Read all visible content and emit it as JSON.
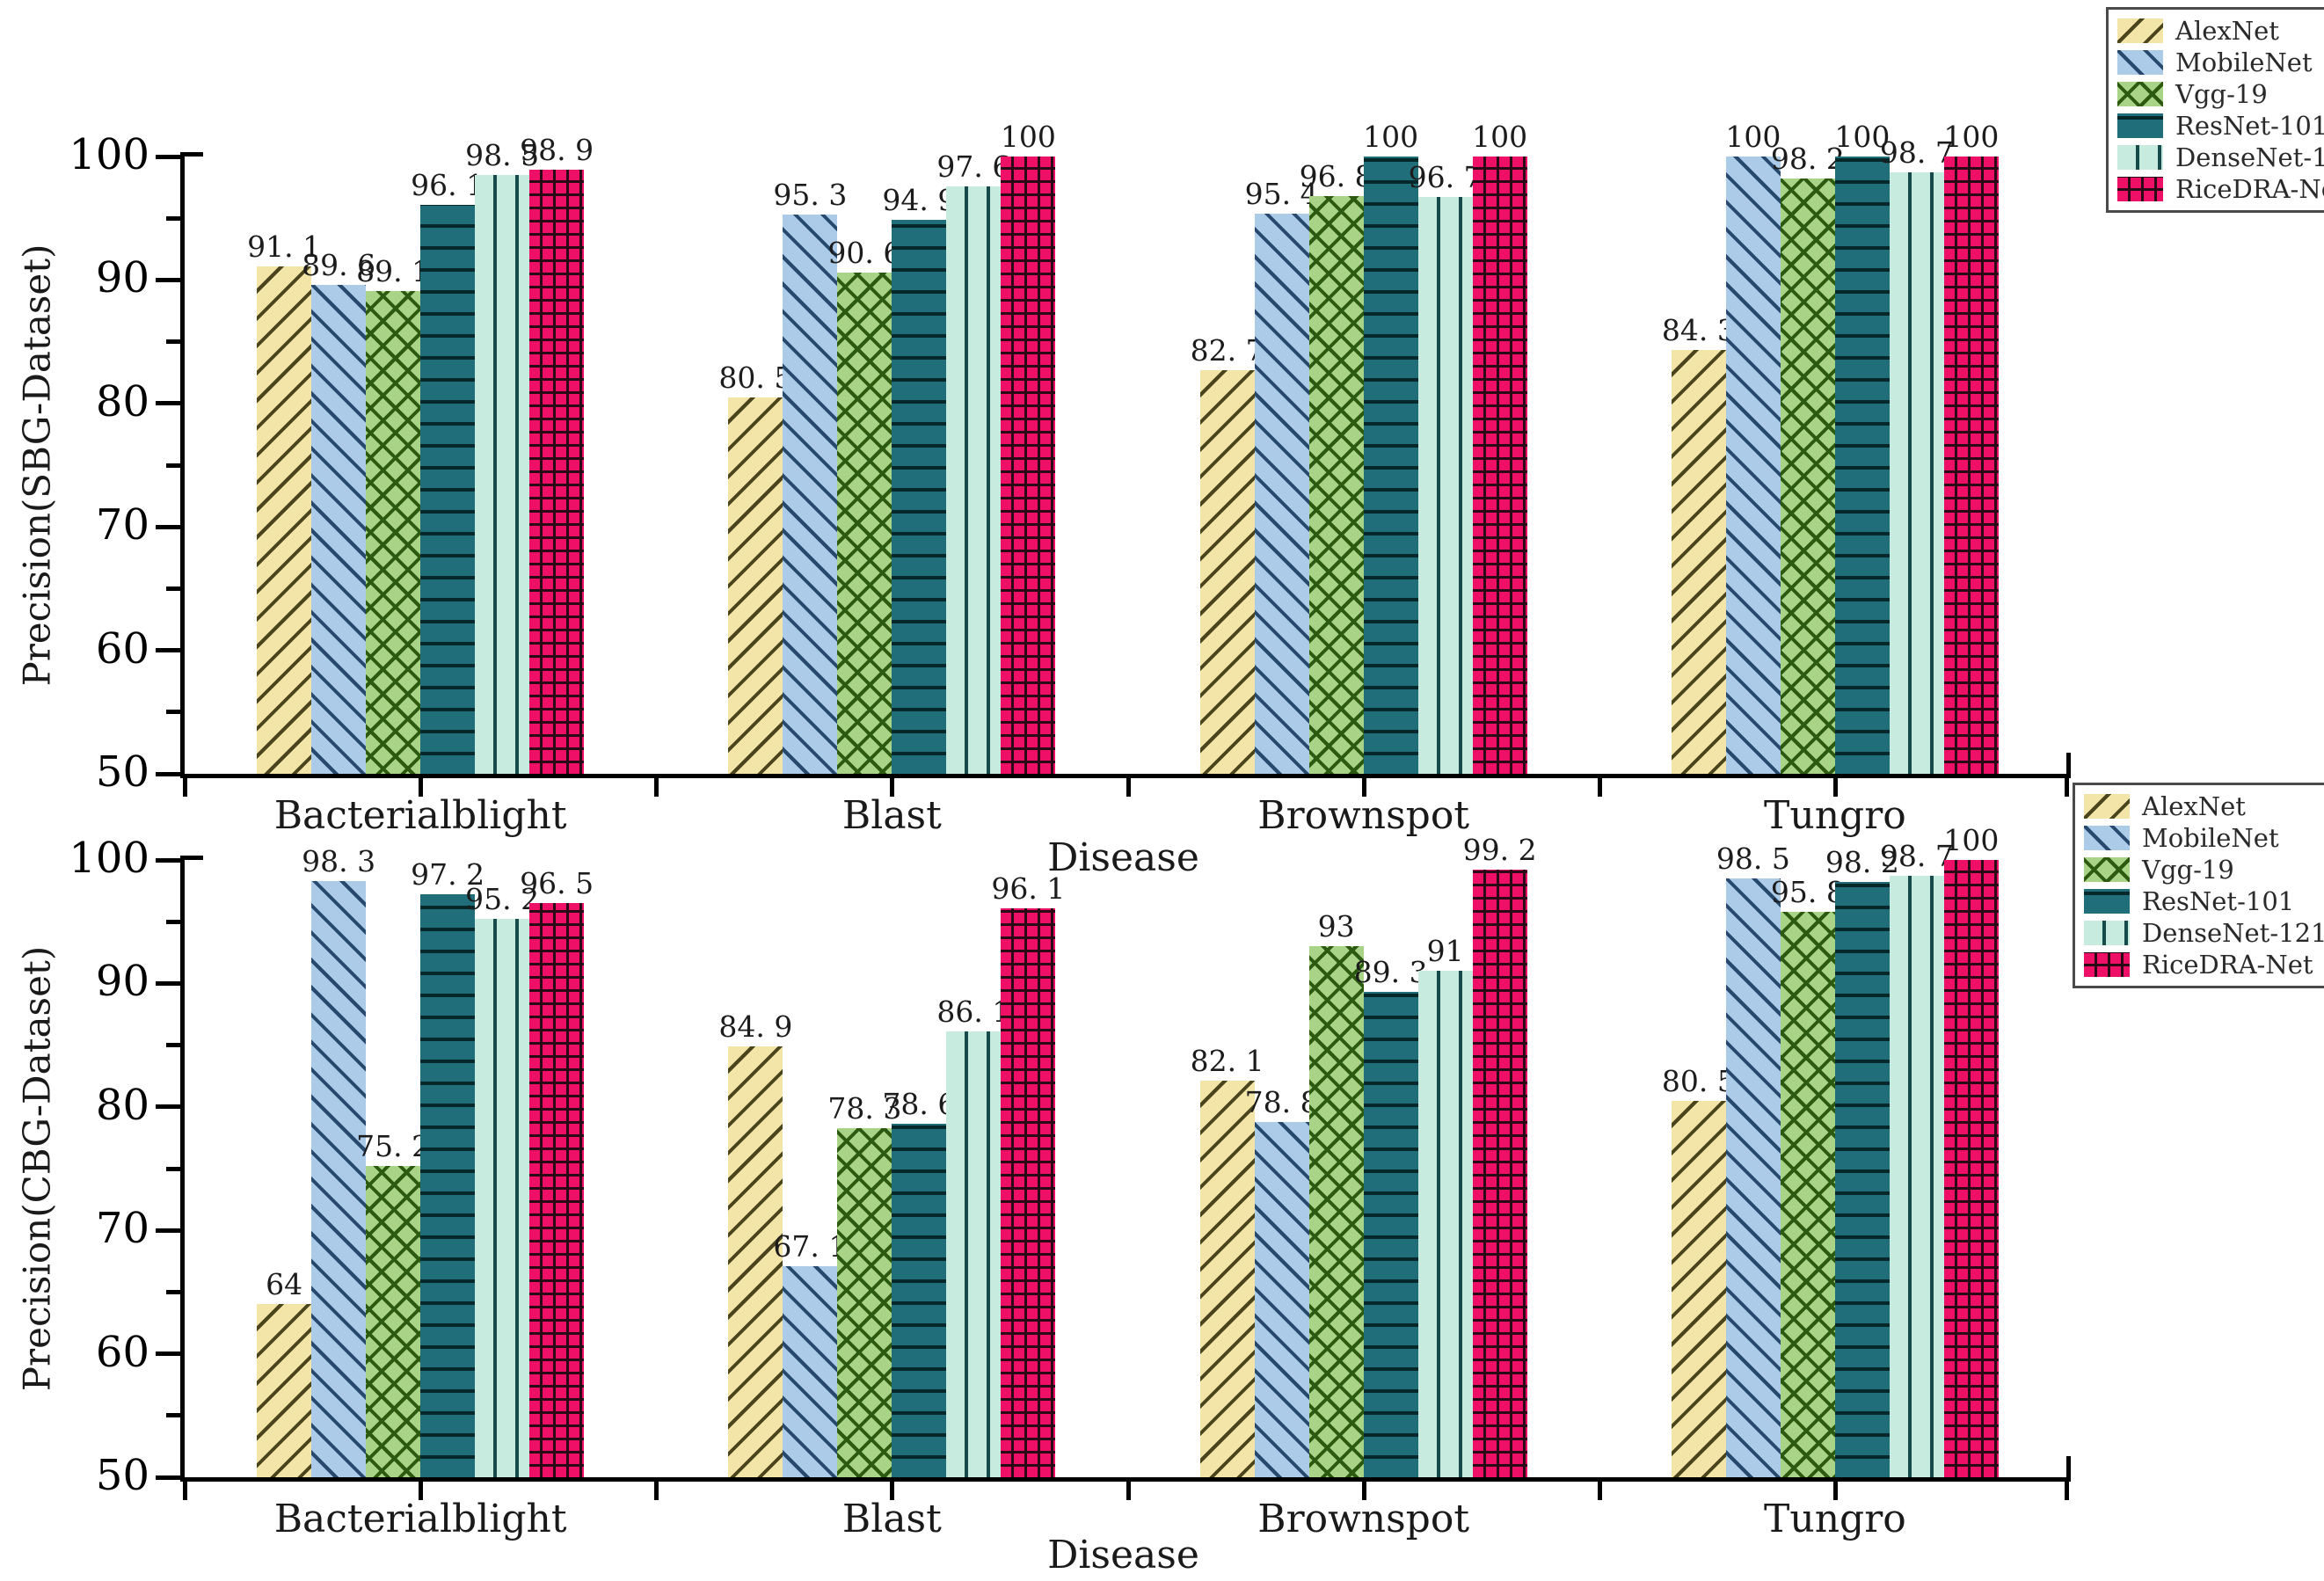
{
  "figure": {
    "background": "#ffffff",
    "axis_color": "#000000",
    "text_color": "#1a1a1a"
  },
  "legend": {
    "entries": [
      "AlexNet",
      "MobileNet",
      "Vgg-19",
      "ResNet-101",
      "DenseNet-121",
      "RiceDRA-Net"
    ]
  },
  "series_style": [
    {
      "name": "AlexNet",
      "fill": "#f3e5a8",
      "hatch_color": "#4a451c",
      "hatch": "diagonal-forward"
    },
    {
      "name": "MobileNet",
      "fill": "#abcbe9",
      "hatch_color": "#27496e",
      "hatch": "diagonal-backward"
    },
    {
      "name": "Vgg-19",
      "fill": "#a9d386",
      "hatch_color": "#2c5a10",
      "hatch": "cross-diagonal"
    },
    {
      "name": "ResNet-101",
      "fill": "#1f6e79",
      "hatch_color": "#05282b",
      "hatch": "horizontal-lines"
    },
    {
      "name": "DenseNet-121",
      "fill": "#c7ecdf",
      "hatch_color": "#174b4b",
      "hatch": "vertical-lines"
    },
    {
      "name": "RiceDRA-Net",
      "fill": "#ee1066",
      "hatch_color": "#2a0a14",
      "hatch": "grid"
    }
  ],
  "chart_data": [
    {
      "type": "bar",
      "ylabel": "Precision(SBG-Dataset)",
      "xlabel": "Disease",
      "ylim": [
        50,
        100
      ],
      "y_ticks": [
        50,
        60,
        70,
        80,
        90,
        100
      ],
      "grid": false,
      "legend_position": "outside-top-right",
      "categories": [
        "Bacterialblight",
        "Blast",
        "Brownspot",
        "Tungro"
      ],
      "series": [
        {
          "name": "AlexNet",
          "values": [
            91.1,
            80.5,
            82.7,
            84.3
          ],
          "labels": [
            "91. 1",
            "80. 5",
            "82. 7",
            "84. 3"
          ]
        },
        {
          "name": "MobileNet",
          "values": [
            89.6,
            95.3,
            95.4,
            100
          ],
          "labels": [
            "89. 6",
            "95. 3",
            "95. 4",
            "100"
          ]
        },
        {
          "name": "Vgg-19",
          "values": [
            89.1,
            90.6,
            96.8,
            98.2
          ],
          "labels": [
            "89. 1",
            "90. 6",
            "96. 8",
            "98. 2"
          ]
        },
        {
          "name": "ResNet-101",
          "values": [
            96.1,
            94.9,
            100,
            100
          ],
          "labels": [
            "96. 1",
            "94. 9",
            "100",
            "100"
          ]
        },
        {
          "name": "DenseNet-121",
          "values": [
            98.5,
            97.6,
            96.7,
            98.7
          ],
          "labels": [
            "98. 5",
            "97. 6",
            "96. 7",
            "98. 7"
          ]
        },
        {
          "name": "RiceDRA-Net",
          "values": [
            98.9,
            100,
            100,
            100
          ],
          "labels": [
            "98. 9",
            "100",
            "100",
            "100"
          ]
        }
      ]
    },
    {
      "type": "bar",
      "ylabel": "Precision(CBG-Dataset)",
      "xlabel": "Disease",
      "ylim": [
        50,
        100
      ],
      "y_ticks": [
        50,
        60,
        70,
        80,
        90,
        100
      ],
      "grid": false,
      "legend_position": "outside-top-right",
      "categories": [
        "Bacterialblight",
        "Blast",
        "Brownspot",
        "Tungro"
      ],
      "series": [
        {
          "name": "AlexNet",
          "values": [
            64,
            84.9,
            82.1,
            80.5
          ],
          "labels": [
            "64",
            "84. 9",
            "82. 1",
            "80. 5"
          ]
        },
        {
          "name": "MobileNet",
          "values": [
            98.3,
            67.1,
            78.8,
            98.5
          ],
          "labels": [
            "98. 3",
            "67. 1",
            "78. 8",
            "98. 5"
          ]
        },
        {
          "name": "Vgg-19",
          "values": [
            75.2,
            78.3,
            93,
            95.8
          ],
          "labels": [
            "75. 2",
            "78. 3",
            "93",
            "95. 8"
          ]
        },
        {
          "name": "ResNet-101",
          "values": [
            97.2,
            78.6,
            89.3,
            98.2
          ],
          "labels": [
            "97. 2",
            "78. 6",
            "89. 3",
            "98. 2"
          ]
        },
        {
          "name": "DenseNet-121",
          "values": [
            95.2,
            86.1,
            91,
            98.7
          ],
          "labels": [
            "95. 2",
            "86. 1",
            "91",
            "98. 7"
          ]
        },
        {
          "name": "RiceDRA-Net",
          "values": [
            96.5,
            96.1,
            99.2,
            100
          ],
          "labels": [
            "96. 5",
            "96. 1",
            "99. 2",
            "100"
          ]
        }
      ]
    }
  ]
}
